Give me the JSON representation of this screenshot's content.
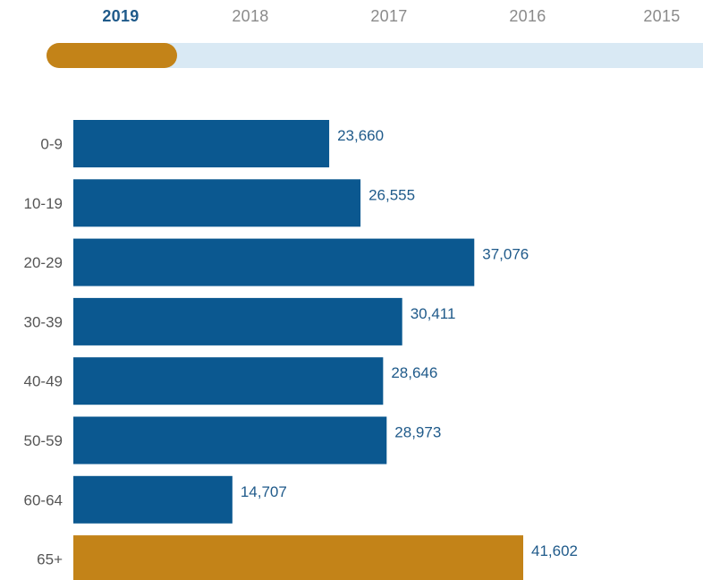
{
  "years": [
    "2019",
    "2018",
    "2017",
    "2016",
    "2015"
  ],
  "selected_year_index": 0,
  "slider": {
    "position": 0
  },
  "colors": {
    "bar": "#0b5890",
    "highlight": "#c38318",
    "value_text": "#1f5a8a",
    "label_text": "#555555",
    "active_year": "#1f5a8a",
    "inactive_year": "#8a8a8a",
    "track": "#d9e9f4"
  },
  "chart_data": {
    "type": "bar",
    "orientation": "horizontal",
    "categories": [
      "0-9",
      "10-19",
      "20-29",
      "30-39",
      "40-49",
      "50-59",
      "60-64",
      "65+"
    ],
    "values": [
      23660,
      26555,
      37076,
      30411,
      28646,
      28973,
      14707,
      41602
    ],
    "value_labels": [
      "23,660",
      "26,555",
      "37,076",
      "30,411",
      "28,646",
      "28,973",
      "14,707",
      "41,602"
    ],
    "highlight": [
      false,
      false,
      false,
      false,
      false,
      false,
      false,
      true
    ],
    "title": "",
    "xlabel": "",
    "ylabel": "",
    "xlim": [
      0,
      41602
    ],
    "grid": false
  }
}
